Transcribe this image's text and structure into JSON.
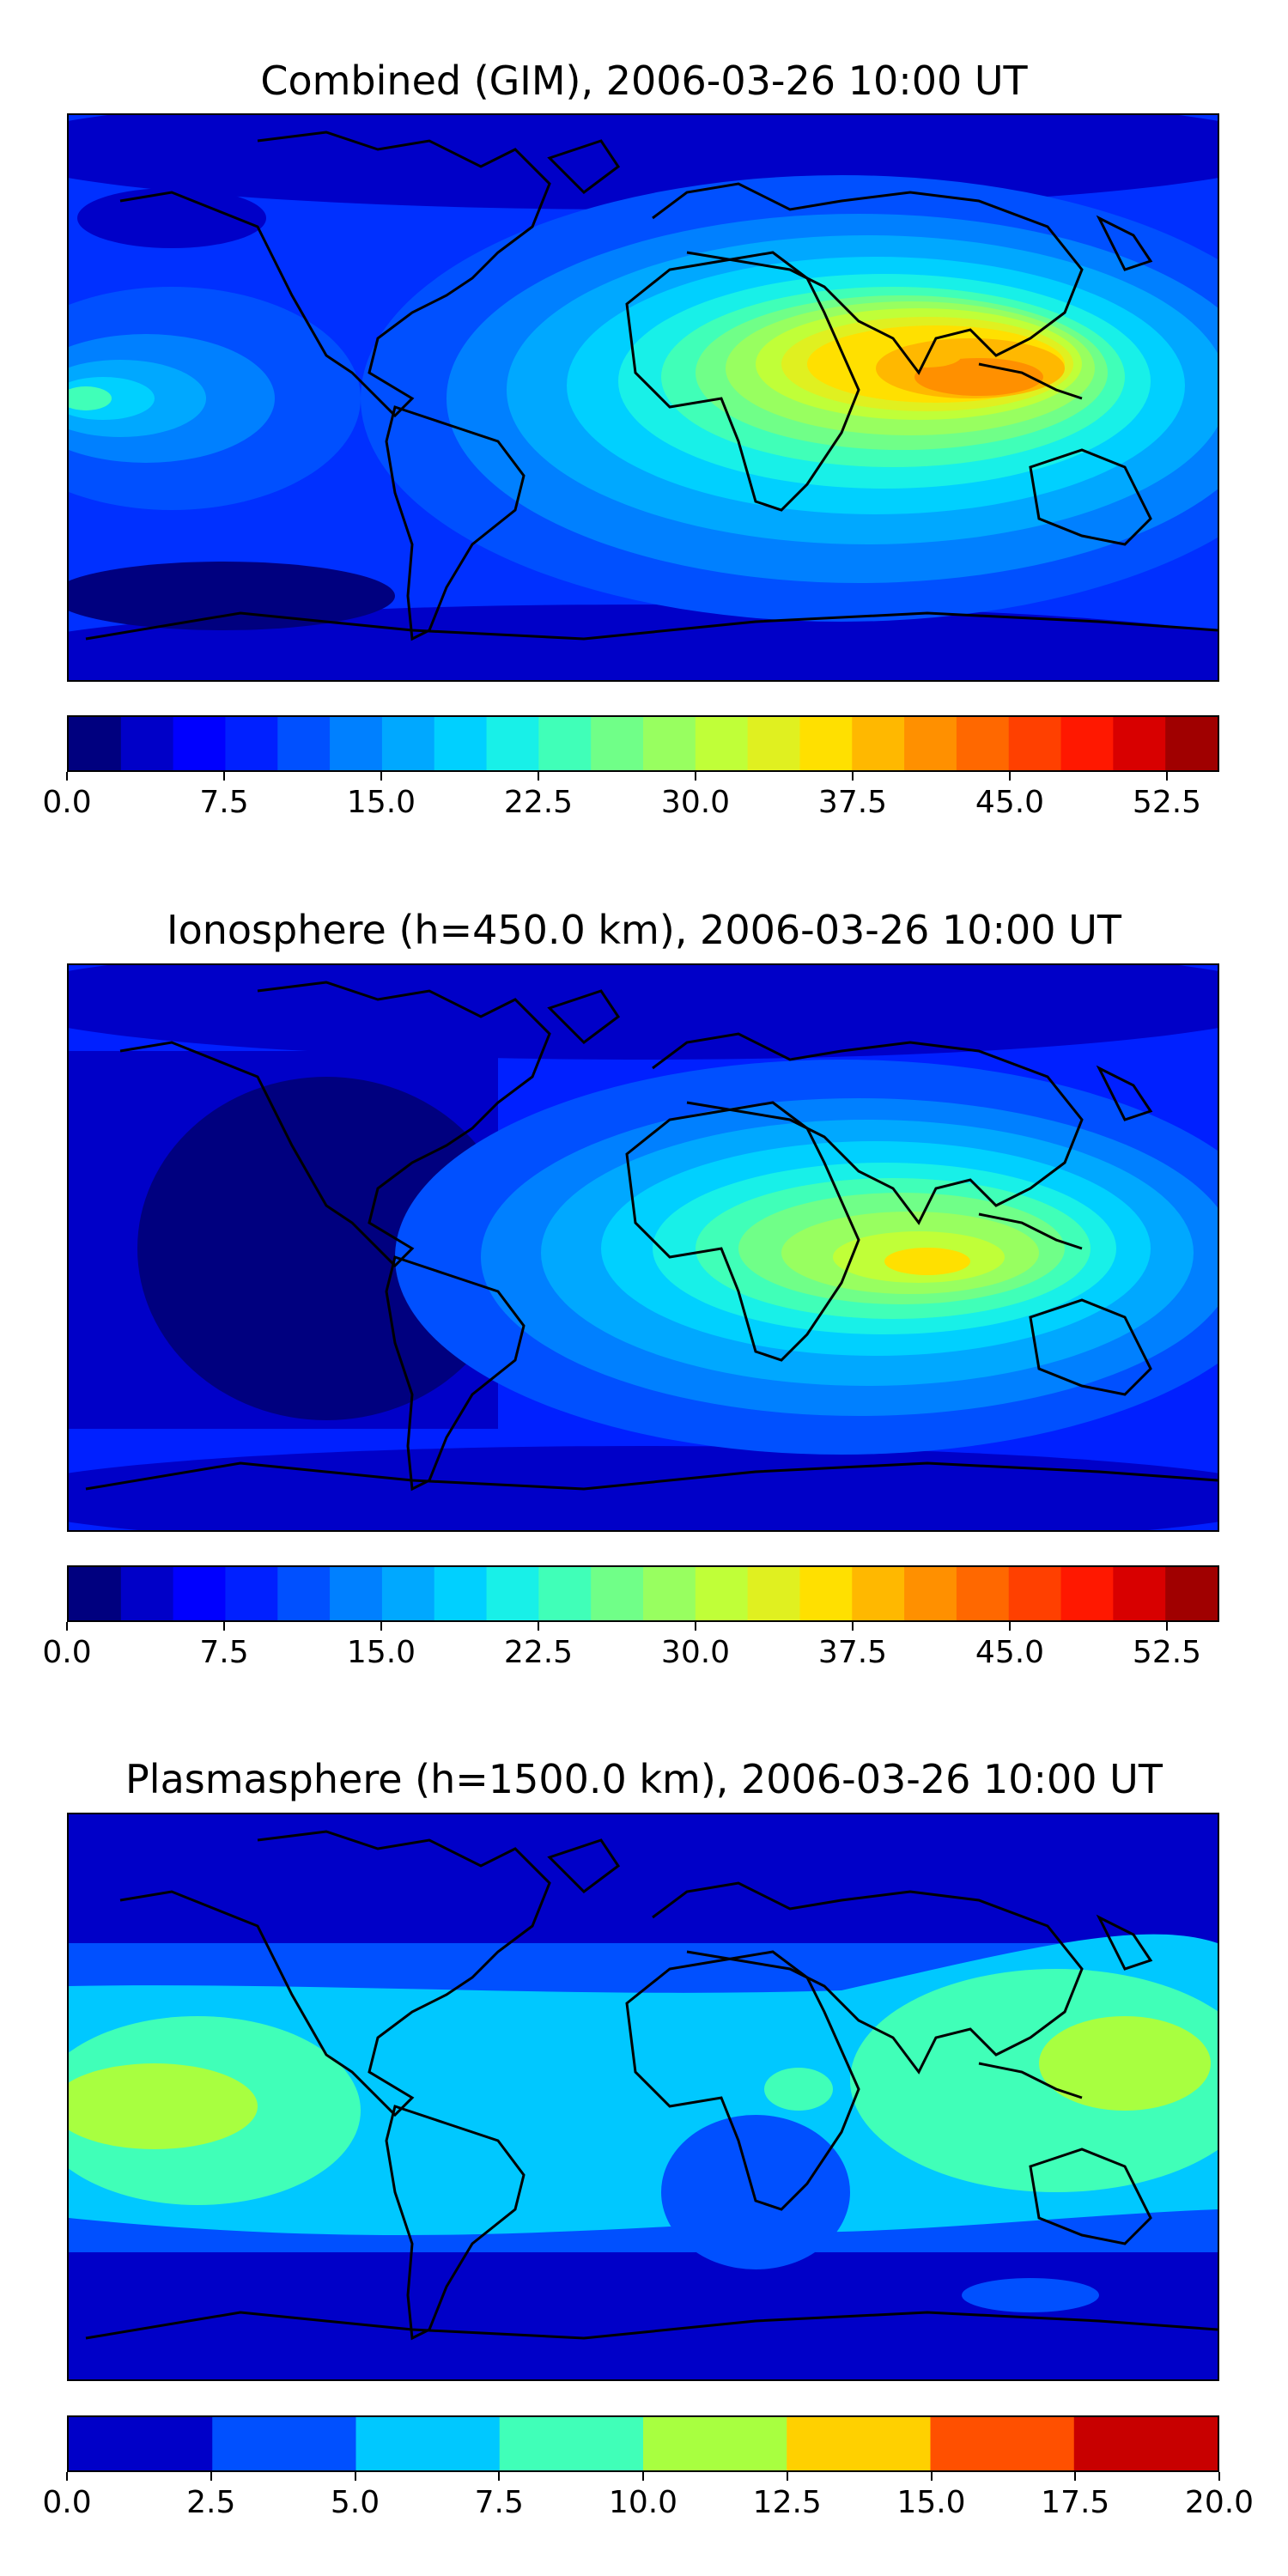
{
  "chart_data": [
    {
      "type": "heatmap",
      "title": "Combined (GIM), 2006-03-26 10:00 UT",
      "quantity_range": [
        0.0,
        55.0
      ],
      "colorbar": {
        "ticks": [
          "0.0",
          "7.5",
          "15.0",
          "22.5",
          "30.0",
          "37.5",
          "45.0",
          "52.5"
        ],
        "tick_values": [
          0.0,
          7.5,
          15.0,
          22.5,
          30.0,
          37.5,
          45.0,
          52.5
        ],
        "levels": [
          0,
          2.5,
          5,
          7.5,
          10,
          12.5,
          15,
          17.5,
          20,
          22.5,
          25,
          27.5,
          30,
          32.5,
          35,
          37.5,
          40,
          42.5,
          45,
          47.5,
          50,
          52.5,
          55
        ],
        "colors": [
          "#00007f",
          "#0000c8",
          "#0000ff",
          "#0020ff",
          "#0050ff",
          "#0080ff",
          "#00a8ff",
          "#00d0ff",
          "#18f0e8",
          "#40ffb8",
          "#70ff88",
          "#98ff60",
          "#c0ff38",
          "#e0f020",
          "#ffe000",
          "#ffb800",
          "#ff9000",
          "#ff6800",
          "#ff4000",
          "#ff1800",
          "#d80000",
          "#a00000"
        ]
      },
      "features": [
        {
          "name": "equatorial peak over Africa / Indian Ocean / SE Asia",
          "lon": [
            50,
            110
          ],
          "lat": [
            -5,
            15
          ],
          "approx_max": 45
        },
        {
          "name": "secondary enhancement west of South America",
          "lon": [
            -180,
            -140
          ],
          "lat": [
            -10,
            10
          ],
          "approx_max": 22.5
        },
        {
          "name": "high-latitude minima",
          "lat": [
            -75,
            80
          ],
          "approx_min": 2.5
        }
      ]
    },
    {
      "type": "heatmap",
      "title": "Ionosphere  (h=450.0 km), 2006-03-26 10:00 UT",
      "quantity_range": [
        0.0,
        55.0
      ],
      "colorbar": {
        "ticks": [
          "0.0",
          "7.5",
          "15.0",
          "22.5",
          "30.0",
          "37.5",
          "45.0",
          "52.5"
        ],
        "tick_values": [
          0.0,
          7.5,
          15.0,
          22.5,
          30.0,
          37.5,
          45.0,
          52.5
        ],
        "levels": [
          0,
          2.5,
          5,
          7.5,
          10,
          12.5,
          15,
          17.5,
          20,
          22.5,
          25,
          27.5,
          30,
          32.5,
          35,
          37.5,
          40,
          42.5,
          45,
          47.5,
          50,
          52.5,
          55
        ],
        "colors": [
          "#00007f",
          "#0000c8",
          "#0000ff",
          "#0020ff",
          "#0050ff",
          "#0080ff",
          "#00a8ff",
          "#00d0ff",
          "#18f0e8",
          "#40ffb8",
          "#70ff88",
          "#98ff60",
          "#c0ff38",
          "#e0f020",
          "#ffe000",
          "#ffb800",
          "#ff9000",
          "#ff6800",
          "#ff4000",
          "#ff1800",
          "#d80000",
          "#a00000"
        ]
      },
      "features": [
        {
          "name": "equatorial peak over Africa / Indian Ocean",
          "lon": [
            40,
            100
          ],
          "lat": [
            -10,
            15
          ],
          "approx_max": 35
        },
        {
          "name": "night-side minimum over the Americas",
          "lon": [
            -150,
            -60
          ],
          "approx_min": 2.5
        }
      ]
    },
    {
      "type": "heatmap",
      "title": "Plasmasphere (h=1500.0 km), 2006-03-26 10:00 UT",
      "quantity_range": [
        0.0,
        20.0
      ],
      "colorbar": {
        "ticks": [
          "0.0",
          "2.5",
          "5.0",
          "7.5",
          "10.0",
          "12.5",
          "15.0",
          "17.5",
          "20.0"
        ],
        "tick_values": [
          0.0,
          2.5,
          5.0,
          7.5,
          10.0,
          12.5,
          15.0,
          17.5,
          20.0
        ],
        "levels": [
          0,
          2.5,
          5,
          7.5,
          10,
          12.5,
          15,
          17.5,
          20
        ],
        "colors": [
          "#0000c8",
          "#0050ff",
          "#00c8ff",
          "#40ffb8",
          "#a8ff40",
          "#ffd000",
          "#ff5000",
          "#c80000"
        ]
      },
      "features": [
        {
          "name": "low-latitude band",
          "lat": [
            -35,
            30
          ],
          "approx_value": 5.0
        },
        {
          "name": "enhancement over western Pacific",
          "lon": [
            130,
            180
          ],
          "lat": [
            -15,
            20
          ],
          "approx_max": 10.0
        },
        {
          "name": "enhancement over eastern Pacific",
          "lon": [
            -180,
            -150
          ],
          "lat": [
            -10,
            10
          ],
          "approx_max": 12.5
        }
      ]
    }
  ],
  "icons": {
    "map_outline": "world-coastlines"
  }
}
